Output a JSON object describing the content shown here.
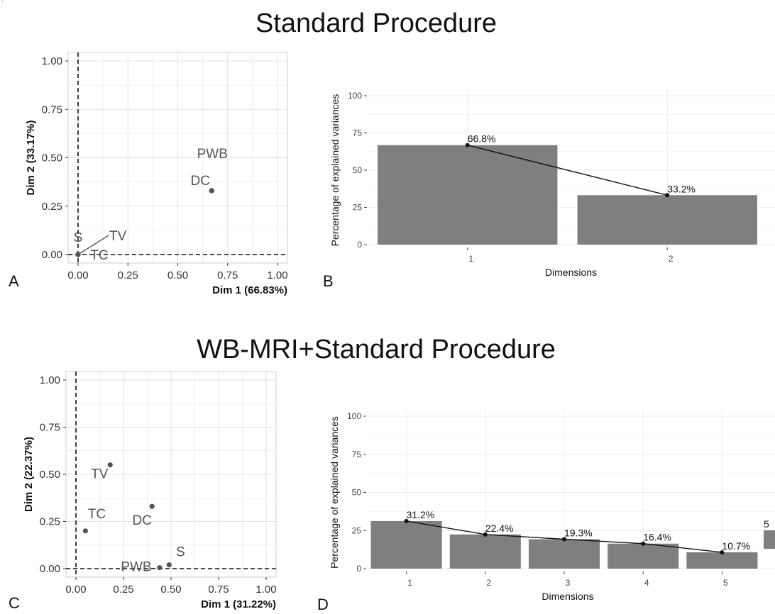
{
  "figure": {
    "corner_mark": "'",
    "title_top": "Standard Procedure",
    "title_bottom": "WB-MRI+Standard Procedure",
    "letters": {
      "a": "A",
      "b": "B",
      "c": "C",
      "d": "D"
    }
  },
  "chart_data": [
    {
      "panel": "A",
      "type": "scatter",
      "xlabel": "Dim 1 (66.83%)",
      "ylabel": "Dim 2 (33.17%)",
      "xlim": [
        0,
        1
      ],
      "ylim": [
        0,
        1
      ],
      "xticks": [
        "0.00",
        "0.25",
        "0.50",
        "0.75",
        "1.00"
      ],
      "yticks": [
        "0.00",
        "0.25",
        "0.50",
        "0.75",
        "1.00"
      ],
      "grid": true,
      "reference_lines": "dashed at x=0 and y=0",
      "points": [
        {
          "label": "PWB",
          "x": 0.67,
          "y": 0.33
        },
        {
          "label": "DC",
          "x": 0.67,
          "y": 0.33
        },
        {
          "label": "S",
          "x": 0.0,
          "y": 0.0
        },
        {
          "label": "TV",
          "x": 0.0,
          "y": 0.0
        },
        {
          "label": "TC",
          "x": 0.0,
          "y": 0.0
        }
      ]
    },
    {
      "panel": "B",
      "type": "bar",
      "xlabel": "Dimensions",
      "ylabel": "Percentage of explained variances",
      "ylim": [
        0,
        100
      ],
      "yticks": [
        "0",
        "25",
        "50",
        "75",
        "100"
      ],
      "categories": [
        "1",
        "2"
      ],
      "values": [
        66.8,
        33.2
      ],
      "data_labels": [
        "66.8%",
        "33.2%"
      ],
      "overlay_line": true,
      "grid": true
    },
    {
      "panel": "C",
      "type": "scatter",
      "xlabel": "Dim 1 (31.22%)",
      "ylabel": "Dim 2 (22.37%)",
      "xlim": [
        0,
        1
      ],
      "ylim": [
        0,
        1
      ],
      "xticks": [
        "0.00",
        "0.25",
        "0.50",
        "0.75",
        "1.00"
      ],
      "yticks": [
        "0.00",
        "0.25",
        "0.50",
        "0.75",
        "1.00"
      ],
      "grid": true,
      "reference_lines": "dashed at x=0 and y=0",
      "points": [
        {
          "label": "TV",
          "x": 0.18,
          "y": 0.55
        },
        {
          "label": "DC",
          "x": 0.4,
          "y": 0.33
        },
        {
          "label": "TC",
          "x": 0.05,
          "y": 0.2
        },
        {
          "label": "S",
          "x": 0.49,
          "y": 0.02
        },
        {
          "label": "PWB",
          "x": 0.44,
          "y": 0.005
        }
      ]
    },
    {
      "panel": "D",
      "type": "bar",
      "xlabel": "Dimensions",
      "ylabel": "Percentage of explained variances",
      "ylim": [
        0,
        100
      ],
      "yticks": [
        "0",
        "25",
        "50",
        "75",
        "100"
      ],
      "categories": [
        "1",
        "2",
        "3",
        "4",
        "5"
      ],
      "values": [
        31.2,
        22.4,
        19.3,
        16.4,
        10.7
      ],
      "data_labels": [
        "31.2%",
        "22.4%",
        "19.3%",
        "16.4%",
        "10.7%"
      ],
      "overlay_line": true,
      "grid": true,
      "partial_bar_text": "5"
    }
  ]
}
